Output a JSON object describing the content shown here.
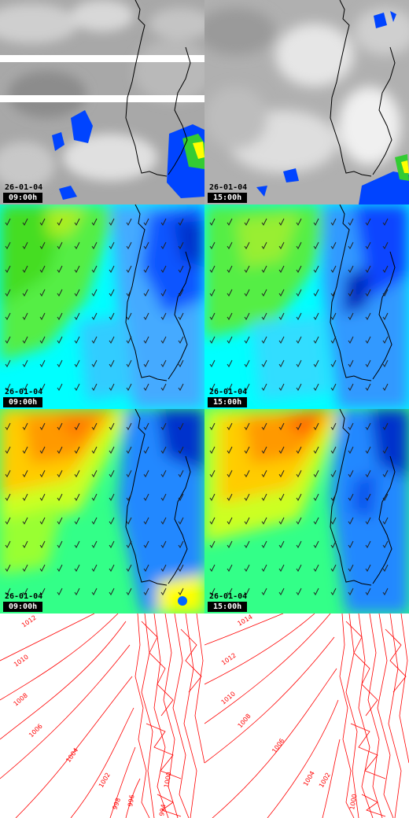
{
  "panels": [
    {
      "row": 0,
      "col": 0,
      "date": "26-01-04",
      "time": "09:00h",
      "kind": "satellite"
    },
    {
      "row": 0,
      "col": 1,
      "date": "26-01-04",
      "time": "15:00h",
      "kind": "satellite"
    },
    {
      "row": 1,
      "col": 0,
      "date": "26-01-04",
      "time": "09:00h",
      "kind": "wind-low"
    },
    {
      "row": 1,
      "col": 1,
      "date": "26-01-04",
      "time": "15:00h",
      "kind": "wind-low"
    },
    {
      "row": 2,
      "col": 0,
      "date": "26-01-04",
      "time": "09:00h",
      "kind": "wind-high"
    },
    {
      "row": 2,
      "col": 1,
      "date": "26-01-04",
      "time": "15:00h",
      "kind": "wind-high"
    },
    {
      "row": 3,
      "col": 0,
      "kind": "pressure",
      "isobar_labels": [
        "1012",
        "1010",
        "1008",
        "1006",
        "1004",
        "1002",
        "998",
        "996",
        "994",
        "1000"
      ]
    },
    {
      "row": 3,
      "col": 1,
      "kind": "pressure",
      "isobar_labels": [
        "1014",
        "1012",
        "1010",
        "1008",
        "1006",
        "1004",
        "1002",
        "1000"
      ]
    }
  ],
  "colors": {
    "coast": "#000000",
    "isobar": "#ff0000",
    "wind_green": "#39e600",
    "wind_cyan": "#00ffff",
    "wind_blue": "#0040ff",
    "wind_yellow": "#ffff00",
    "wind_orange": "#ff8000"
  }
}
